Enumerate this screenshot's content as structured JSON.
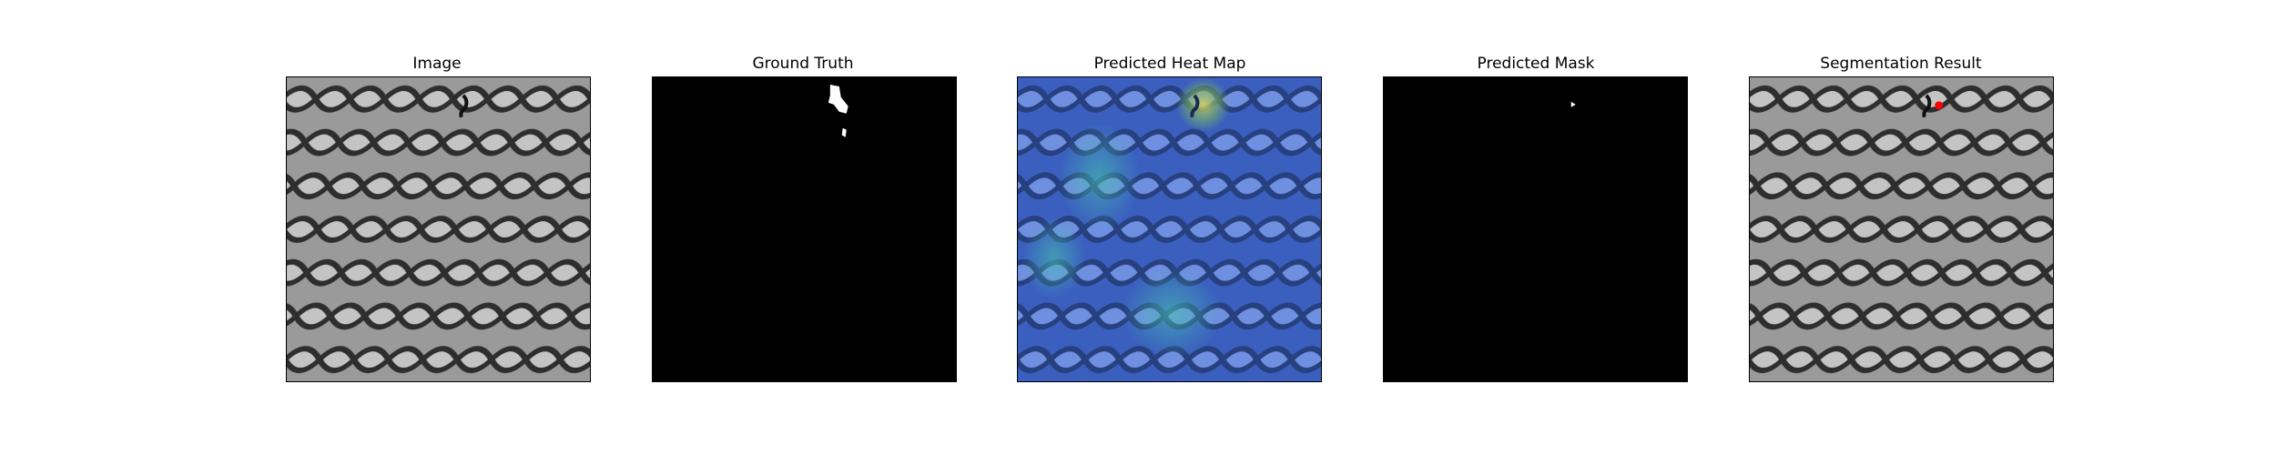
{
  "panels": [
    {
      "title": "Image"
    },
    {
      "title": "Ground Truth"
    },
    {
      "title": "Predicted Heat Map"
    },
    {
      "title": "Predicted Mask"
    },
    {
      "title": "Segmentation Result"
    }
  ],
  "colors": {
    "background": "#ffffff",
    "mask_fg": "#ffffff",
    "mask_bg": "#000000",
    "overlay_red": "#ff0000",
    "heat_low": "#3f66c8",
    "heat_high": "#7fbf5a"
  }
}
